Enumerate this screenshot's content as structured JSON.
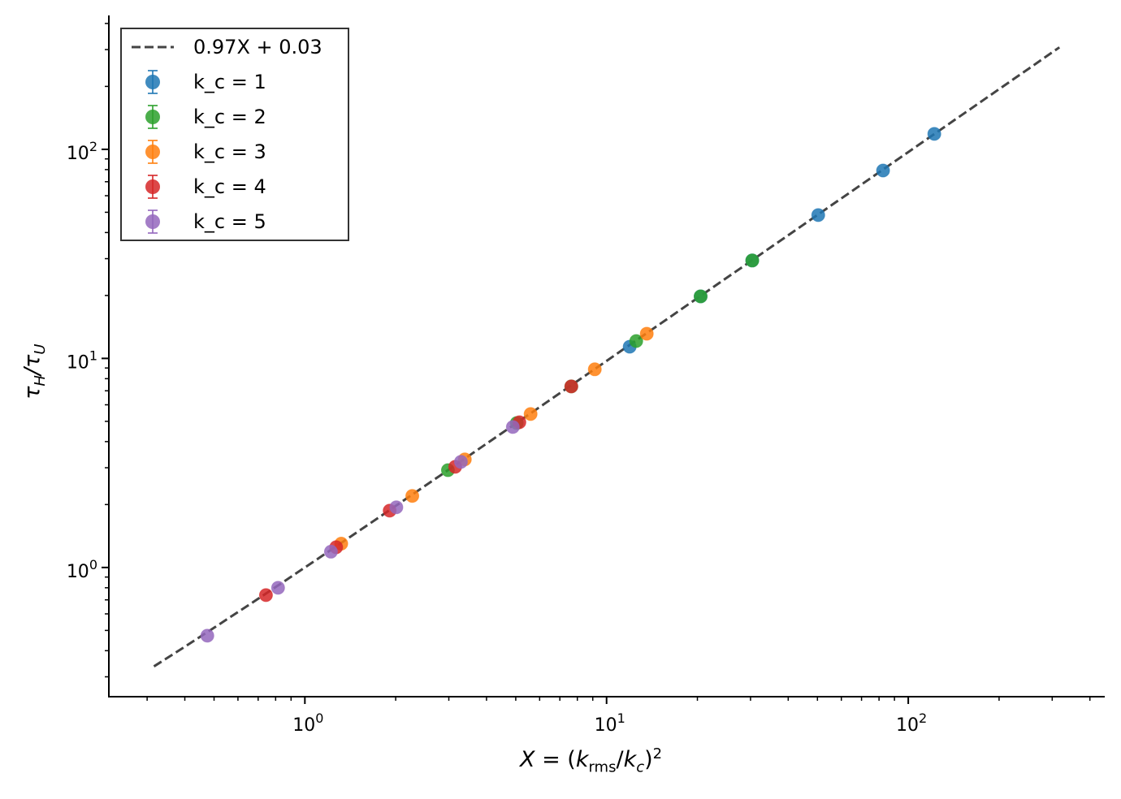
{
  "chart_data": {
    "type": "scatter",
    "title": "",
    "xlabel": "X = (k_rms/k_c)^2",
    "ylabel": "τ_H/τ_U",
    "xscale": "log",
    "yscale": "log",
    "xlim": [
      0.224,
      448
    ],
    "ylim": [
      0.241,
      437
    ],
    "grid": false,
    "legend_position": "upper left",
    "xticks": [
      {
        "value": 1,
        "label": "10^0"
      },
      {
        "value": 10,
        "label": "10^1"
      },
      {
        "value": 100,
        "label": "10^2"
      }
    ],
    "yticks": [
      {
        "value": 1,
        "label": "10^0"
      },
      {
        "value": 10,
        "label": "10^1"
      },
      {
        "value": 100,
        "label": "10^2"
      }
    ],
    "fit_line": {
      "label": "0.97X + 0.03",
      "slope": 0.97,
      "intercept": 0.03,
      "x_range": [
        0.316,
        317
      ],
      "color": "#444444",
      "style": "dashed"
    },
    "series": [
      {
        "name": "k_c = 1",
        "color": "#1f77b4",
        "x": [
          20.5,
          30.4,
          11.93,
          50.3,
          82.5,
          122
        ],
        "y": [
          19.8,
          29.4,
          11.38,
          48.5,
          79.2,
          118.6
        ]
      },
      {
        "name": "k_c = 2",
        "color": "#2ca02c",
        "x": [
          2.98,
          5.04,
          7.64,
          12.54,
          20.5,
          30.4
        ],
        "y": [
          2.92,
          4.91,
          7.35,
          12.11,
          19.8,
          29.4
        ]
      },
      {
        "name": "k_c = 3",
        "color": "#ff7f0e",
        "x": [
          1.32,
          2.27,
          3.39,
          5.6,
          9.14,
          13.59
        ],
        "y": [
          1.3,
          2.2,
          3.29,
          5.42,
          8.87,
          13.13
        ]
      },
      {
        "name": "k_c = 4",
        "color": "#d62728",
        "x": [
          0.743,
          1.27,
          1.91,
          3.15,
          5.14,
          7.64
        ],
        "y": [
          0.738,
          1.25,
          1.87,
          3.03,
          4.95,
          7.35
        ]
      },
      {
        "name": "k_c = 5",
        "color": "#9467bd",
        "x": [
          0.475,
          0.815,
          1.22,
          2.01,
          3.29,
          4.89
        ],
        "y": [
          0.472,
          0.8,
          1.19,
          1.94,
          3.2,
          4.7
        ]
      }
    ]
  },
  "legend": {
    "fit_label": "0.97X + 0.03",
    "items": [
      {
        "label": "k_c = 1",
        "color": "#1f77b4"
      },
      {
        "label": "k_c = 2",
        "color": "#2ca02c"
      },
      {
        "label": "k_c = 3",
        "color": "#ff7f0e"
      },
      {
        "label": "k_c = 4",
        "color": "#d62728"
      },
      {
        "label": "k_c = 5",
        "color": "#9467bd"
      }
    ]
  }
}
